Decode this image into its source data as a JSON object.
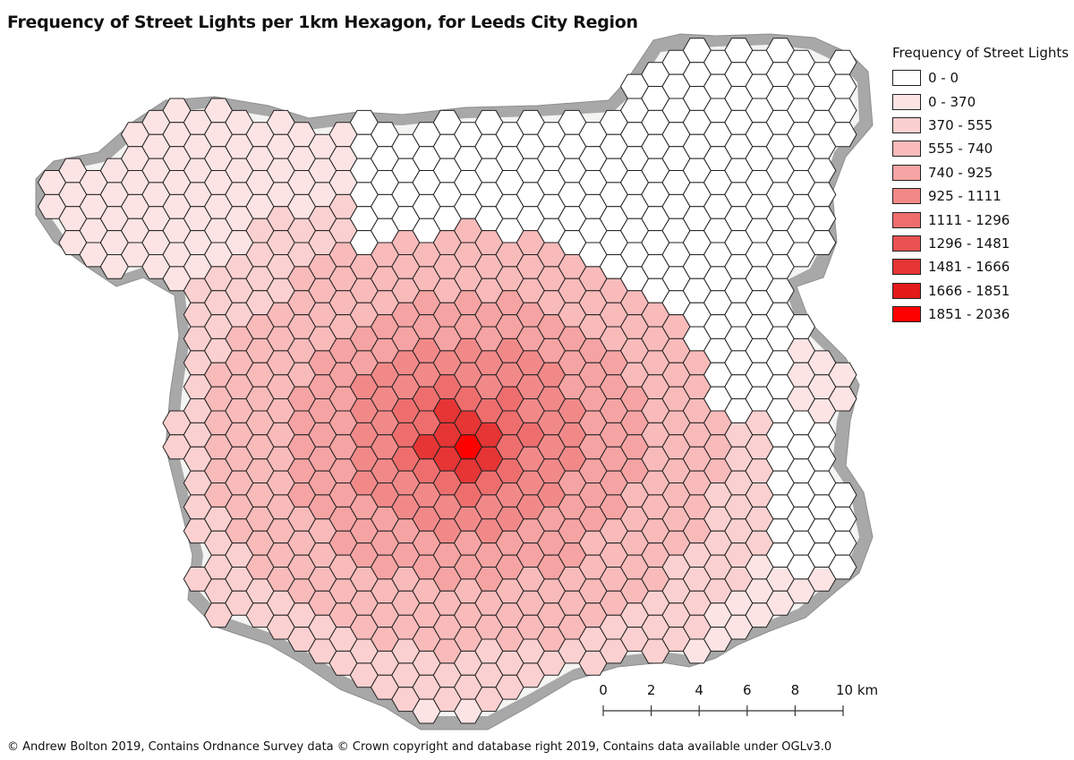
{
  "title": "Frequency of Street Lights per 1km Hexagon, for Leeds City Region",
  "legend": {
    "title": "Frequency of Street Lights",
    "classes": [
      {
        "label": "0 - 0",
        "color": "#ffffff"
      },
      {
        "label": "0 - 370",
        "color": "#fde4e4"
      },
      {
        "label": "370 - 555",
        "color": "#fbd0d0"
      },
      {
        "label": "555 - 740",
        "color": "#f9baba"
      },
      {
        "label": "740 - 925",
        "color": "#f6a3a3"
      },
      {
        "label": "925 - 1111",
        "color": "#f28989"
      },
      {
        "label": "1111 - 1296",
        "color": "#ee6e6e"
      },
      {
        "label": "1296 - 1481",
        "color": "#ea5252"
      },
      {
        "label": "1481 - 1666",
        "color": "#e53535"
      },
      {
        "label": "1666 - 1851",
        "color": "#e21a1a"
      },
      {
        "label": "1851 - 2036",
        "color": "#ff0000"
      }
    ]
  },
  "scale_bar": {
    "ticks": [
      "0",
      "2",
      "4",
      "6",
      "8",
      "10 km"
    ]
  },
  "credit": "© Andrew Bolton 2019, Contains Ordnance Survey data © Crown copyright and database right 2019, Contains data available under OGLv3.0"
}
